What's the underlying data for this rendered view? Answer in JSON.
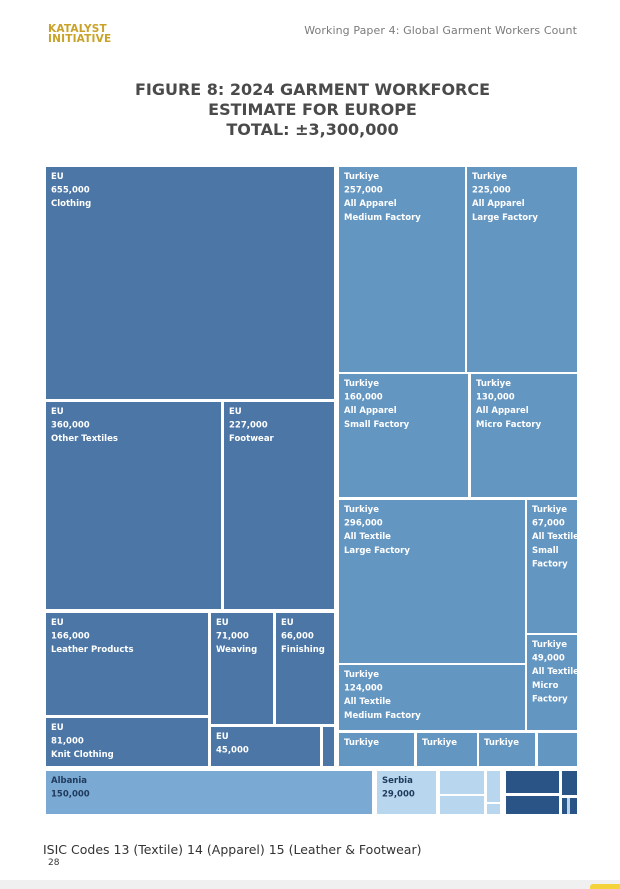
{
  "header": {
    "logo_line1": "KATALYST",
    "logo_line2": "INITIATIVE",
    "paper_title": "Working Paper 4: Global Garment Workers Count"
  },
  "figure": {
    "title_line1": "FIGURE 8: 2024 GARMENT WORKFORCE",
    "title_line2": "ESTIMATE FOR EUROPE",
    "title_line3": "TOTAL: ±3,300,000"
  },
  "colors": {
    "eu": "#4b76a5",
    "turkiye": "#6496c2",
    "albania": "#7aaad4",
    "light": "#b8d7ee",
    "navy": "#2b5486"
  },
  "chart_data": {
    "type": "treemap",
    "title": "FIGURE 8: 2024 GARMENT WORKFORCE ESTIMATE FOR EUROPE TOTAL: ±3,300,000",
    "total": 3300000,
    "cells": [
      {
        "region": "EU",
        "value_label": "655,000",
        "value": 655000,
        "lines": [
          "Clothing"
        ],
        "color_key": "eu"
      },
      {
        "region": "EU",
        "value_label": "360,000",
        "value": 360000,
        "lines": [
          "Other Textiles"
        ],
        "color_key": "eu"
      },
      {
        "region": "EU",
        "value_label": "227,000",
        "value": 227000,
        "lines": [
          "Footwear"
        ],
        "color_key": "eu"
      },
      {
        "region": "EU",
        "value_label": "166,000",
        "value": 166000,
        "lines": [
          "Leather Products"
        ],
        "color_key": "eu"
      },
      {
        "region": "EU",
        "value_label": "71,000",
        "value": 71000,
        "lines": [
          "Weaving"
        ],
        "color_key": "eu"
      },
      {
        "region": "EU",
        "value_label": "66,000",
        "value": 66000,
        "lines": [
          "Finishing"
        ],
        "color_key": "eu"
      },
      {
        "region": "EU",
        "value_label": "81,000",
        "value": 81000,
        "lines": [
          "Knit Clothing"
        ],
        "color_key": "eu"
      },
      {
        "region": "EU",
        "value_label": "45,000",
        "value": 45000,
        "lines": [],
        "color_key": "eu"
      },
      {
        "region": "",
        "value_label": "",
        "value": null,
        "lines": [],
        "color_key": "eu"
      },
      {
        "region": "Turkiye",
        "value_label": "257,000",
        "value": 257000,
        "lines": [
          "All Apparel",
          "Medium Factory"
        ],
        "color_key": "turkiye"
      },
      {
        "region": "Turkiye",
        "value_label": "225,000",
        "value": 225000,
        "lines": [
          "All Apparel",
          "Large Factory"
        ],
        "color_key": "turkiye"
      },
      {
        "region": "Turkiye",
        "value_label": "160,000",
        "value": 160000,
        "lines": [
          "All Apparel",
          "Small Factory"
        ],
        "color_key": "turkiye"
      },
      {
        "region": "Turkiye",
        "value_label": "130,000",
        "value": 130000,
        "lines": [
          "All Apparel",
          "Micro Factory"
        ],
        "color_key": "turkiye"
      },
      {
        "region": "Turkiye",
        "value_label": "296,000",
        "value": 296000,
        "lines": [
          "All Textile",
          "Large Factory"
        ],
        "color_key": "turkiye"
      },
      {
        "region": "Turkiye",
        "value_label": "67,000",
        "value": 67000,
        "lines": [
          "All Textile",
          "Small",
          "Factory"
        ],
        "color_key": "turkiye"
      },
      {
        "region": "Turkiye",
        "value_label": "124,000",
        "value": 124000,
        "lines": [
          "All Textile",
          "Medium Factory"
        ],
        "color_key": "turkiye"
      },
      {
        "region": "Turkiye",
        "value_label": "49,000",
        "value": 49000,
        "lines": [
          "All Textile",
          "Micro",
          "Factory"
        ],
        "color_key": "turkiye"
      },
      {
        "region": "Turkiye",
        "value_label": "",
        "value": null,
        "lines": [],
        "color_key": "turkiye"
      },
      {
        "region": "Turkiye",
        "value_label": "",
        "value": null,
        "lines": [],
        "color_key": "turkiye"
      },
      {
        "region": "Turkiye",
        "value_label": "",
        "value": null,
        "lines": [],
        "color_key": "turkiye"
      },
      {
        "region": "",
        "value_label": "",
        "value": null,
        "lines": [],
        "color_key": "turkiye"
      },
      {
        "region": "Albania",
        "value_label": "150,000",
        "value": 150000,
        "lines": [],
        "color_key": "albania",
        "dark_text": true
      },
      {
        "region": "Serbia",
        "value_label": "29,000",
        "value": 29000,
        "lines": [],
        "color_key": "light",
        "dark_text": true
      },
      {
        "region": "",
        "value_label": "",
        "value": null,
        "lines": [],
        "color_key": "light"
      },
      {
        "region": "",
        "value_label": "",
        "value": null,
        "lines": [],
        "color_key": "light"
      },
      {
        "region": "",
        "value_label": "",
        "value": null,
        "lines": [],
        "color_key": "light"
      },
      {
        "region": "",
        "value_label": "",
        "value": null,
        "lines": [],
        "color_key": "light"
      },
      {
        "region": "",
        "value_label": "",
        "value": null,
        "lines": [],
        "color_key": "light"
      },
      {
        "region": "",
        "value_label": "",
        "value": null,
        "lines": [],
        "color_key": "navy"
      },
      {
        "region": "",
        "value_label": "",
        "value": null,
        "lines": [],
        "color_key": "navy"
      },
      {
        "region": "",
        "value_label": "",
        "value": null,
        "lines": [],
        "color_key": "navy"
      },
      {
        "region": "",
        "value_label": "",
        "value": null,
        "lines": [],
        "color_key": "navy"
      },
      {
        "region": "",
        "value_label": "",
        "value": null,
        "lines": [],
        "color_key": "navy"
      }
    ]
  },
  "footer": {
    "isic_note": "ISIC Codes 13 (Textile) 14 (Apparel) 15 (Leather & Footwear)",
    "page_number": "28"
  }
}
